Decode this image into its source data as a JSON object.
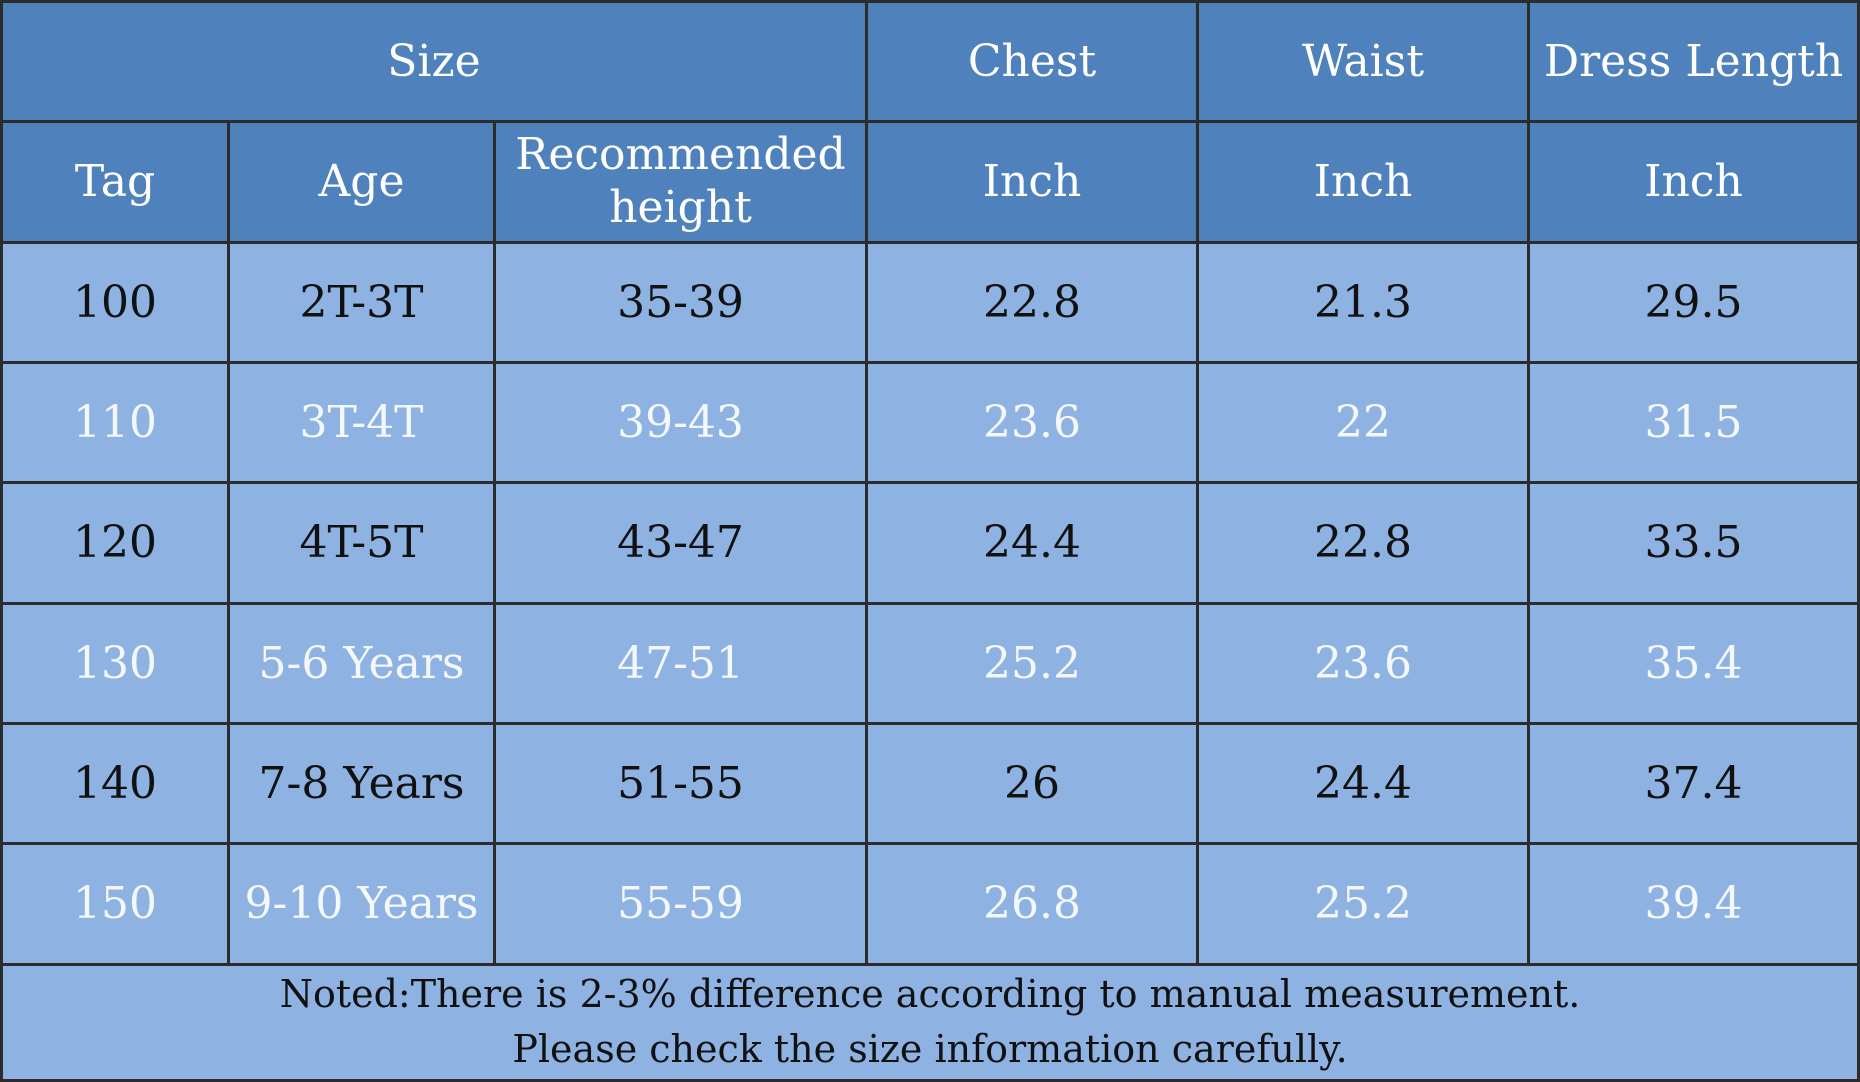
{
  "header_row1": {
    "size": "Size",
    "chest": "Chest",
    "waist": "Waist",
    "dress_length": "Dress Length"
  },
  "header_row2": {
    "tag": "Tag",
    "age": "Age",
    "recommended_height_line1": "Recommended",
    "recommended_height_line2": "height",
    "chest_unit": "Inch",
    "waist_unit": "Inch",
    "dress_length_unit": "Inch"
  },
  "rows": [
    {
      "tag": "100",
      "age": "2T-3T",
      "height": "35-39",
      "chest": "22.8",
      "waist": "21.3",
      "length": "29.5"
    },
    {
      "tag": "110",
      "age": "3T-4T",
      "height": "39-43",
      "chest": "23.6",
      "waist": "22",
      "length": "31.5"
    },
    {
      "tag": "120",
      "age": "4T-5T",
      "height": "43-47",
      "chest": "24.4",
      "waist": "22.8",
      "length": "33.5"
    },
    {
      "tag": "130",
      "age": "5-6 Years",
      "height": "47-51",
      "chest": "25.2",
      "waist": "23.6",
      "length": "35.4"
    },
    {
      "tag": "140",
      "age": "7-8 Years",
      "height": "51-55",
      "chest": "26",
      "waist": "24.4",
      "length": "37.4"
    },
    {
      "tag": "150",
      "age": "9-10 Years",
      "height": "55-59",
      "chest": "26.8",
      "waist": "25.2",
      "length": "39.4"
    }
  ],
  "note": {
    "line1": "Noted:There is 2-3% difference according to manual measurement.",
    "line2": "Please check the size information carefully."
  },
  "colors": {
    "header_bg": "#4f81bd",
    "cell_bg": "#8eb2e2",
    "grid": "#2c2c2c"
  }
}
